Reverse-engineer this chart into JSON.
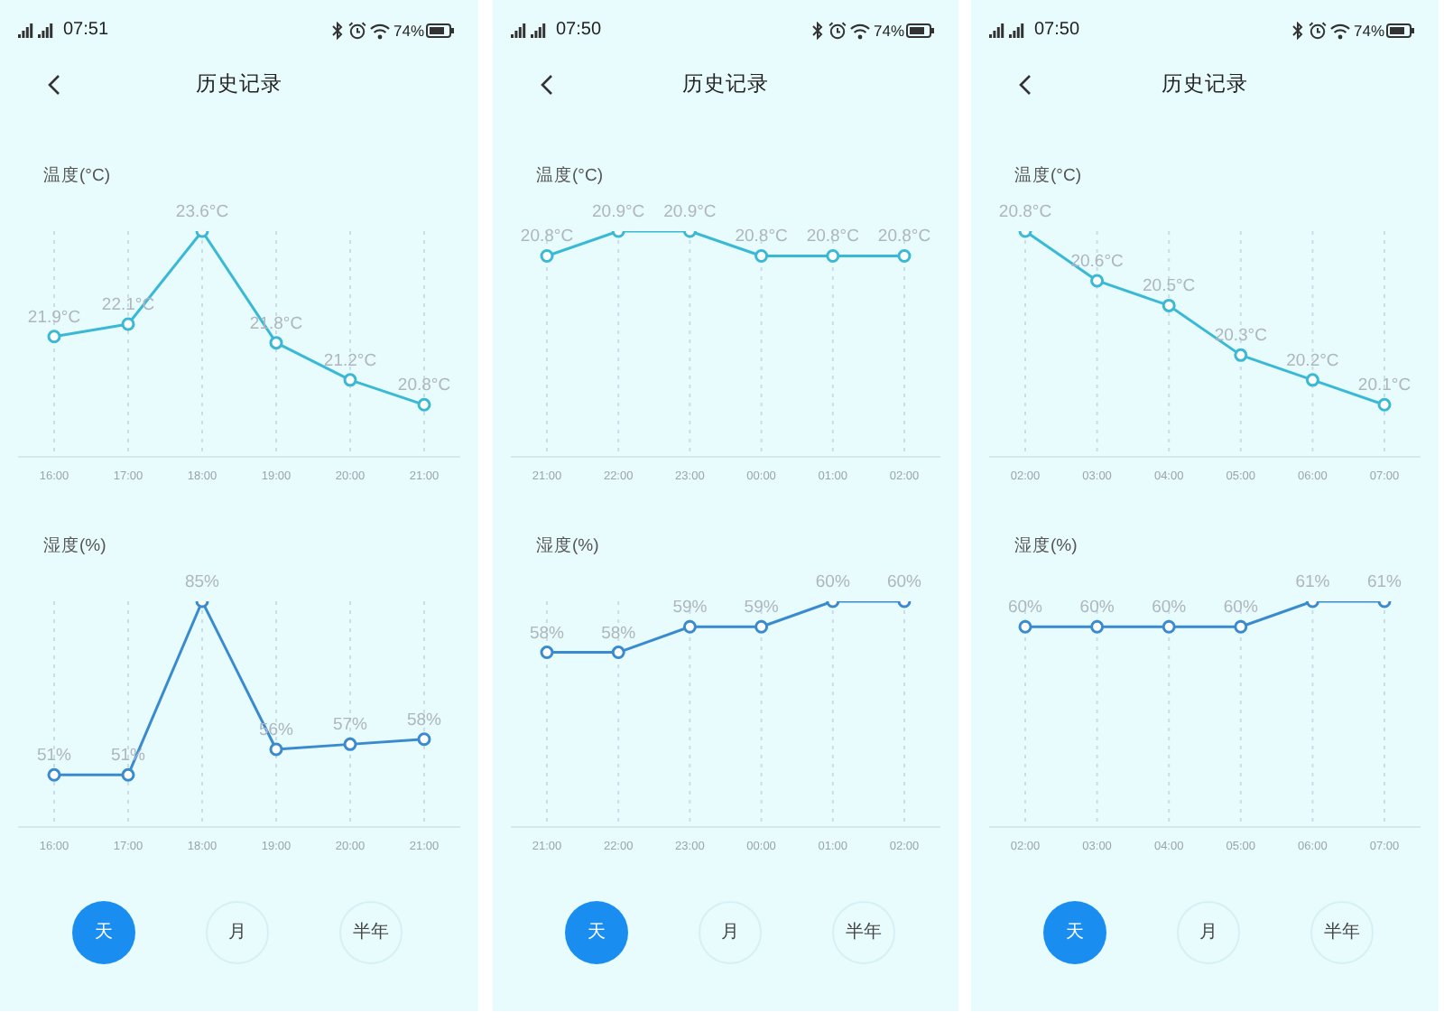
{
  "chart_data": [
    {
      "type": "line",
      "title": "历史记录",
      "ylabel": "温度(°C)",
      "categories": [
        "16:00",
        "17:00",
        "18:00",
        "19:00",
        "20:00",
        "21:00"
      ],
      "values": [
        21.9,
        22.1,
        23.6,
        21.8,
        21.2,
        20.8
      ],
      "value_labels": [
        "21.9°C",
        "22.1°C",
        "23.6°C",
        "21.8°C",
        "21.2°C",
        "20.8°C"
      ],
      "color": "#3ab9d5",
      "marker": "circle",
      "line_style": "solid",
      "grid": "x",
      "annotations": [
        "07:51",
        "74%"
      ]
    },
    {
      "type": "line",
      "title": "历史记录",
      "ylabel": "温度(°C)",
      "categories": [
        "21:00",
        "22:00",
        "23:00",
        "00:00",
        "01:00",
        "02:00"
      ],
      "values": [
        20.8,
        20.9,
        20.9,
        20.8,
        20.8,
        20.8
      ],
      "value_labels": [
        "20.8°C",
        "20.9°C",
        "20.9°C",
        "20.8°C",
        "20.8°C",
        "20.8°C"
      ],
      "color": "#3ab9d5",
      "marker": "circle",
      "line_style": "solid",
      "grid": "x",
      "annotations": [
        "07:50",
        "74%"
      ]
    },
    {
      "type": "line",
      "title": "历史记录",
      "ylabel": "温度(°C)",
      "categories": [
        "02:00",
        "03:00",
        "04:00",
        "05:00",
        "06:00",
        "07:00"
      ],
      "values": [
        20.8,
        20.6,
        20.5,
        20.3,
        20.2,
        20.1
      ],
      "value_labels": [
        "20.8°C",
        "20.6°C",
        "20.5°C",
        "20.3°C",
        "20.2°C",
        "20.1°C"
      ],
      "color": "#3ab9d5",
      "marker": "circle",
      "line_style": "solid",
      "grid": "x",
      "annotations": [
        "07:50",
        "74%"
      ]
    },
    {
      "type": "line",
      "ylabel": "湿度(%)",
      "categories": [
        "16:00",
        "17:00",
        "18:00",
        "19:00",
        "20:00",
        "21:00"
      ],
      "values": [
        51,
        51,
        85,
        56,
        57,
        58
      ],
      "value_labels": [
        "51%",
        "51%",
        "85%",
        "56%",
        "57%",
        "58%"
      ],
      "color": "#3a8ad0",
      "marker": "circle",
      "line_style": "solid",
      "grid": "x",
      "annotations": [
        "天",
        "月",
        "半年"
      ]
    },
    {
      "type": "line",
      "ylabel": "湿度(%)",
      "categories": [
        "21:00",
        "22:00",
        "23:00",
        "00:00",
        "01:00",
        "02:00"
      ],
      "values": [
        58,
        58,
        59,
        59,
        60,
        60
      ],
      "value_labels": [
        "58%",
        "58%",
        "59%",
        "59%",
        "60%",
        "60%"
      ],
      "color": "#3a8ad0",
      "marker": "circle",
      "line_style": "solid",
      "grid": "x",
      "annotations": [
        "天",
        "月",
        "半年"
      ]
    },
    {
      "type": "line",
      "ylabel": "湿度(%)",
      "categories": [
        "02:00",
        "03:00",
        "04:00",
        "05:00",
        "06:00",
        "07:00"
      ],
      "values": [
        60,
        60,
        60,
        60,
        61,
        61
      ],
      "value_labels": [
        "60%",
        "60%",
        "60%",
        "60%",
        "61%",
        "61%"
      ],
      "color": "#3a8ad0",
      "marker": "circle",
      "line_style": "solid",
      "grid": "x",
      "annotations": [
        "天",
        "月",
        "半年"
      ]
    }
  ]
}
